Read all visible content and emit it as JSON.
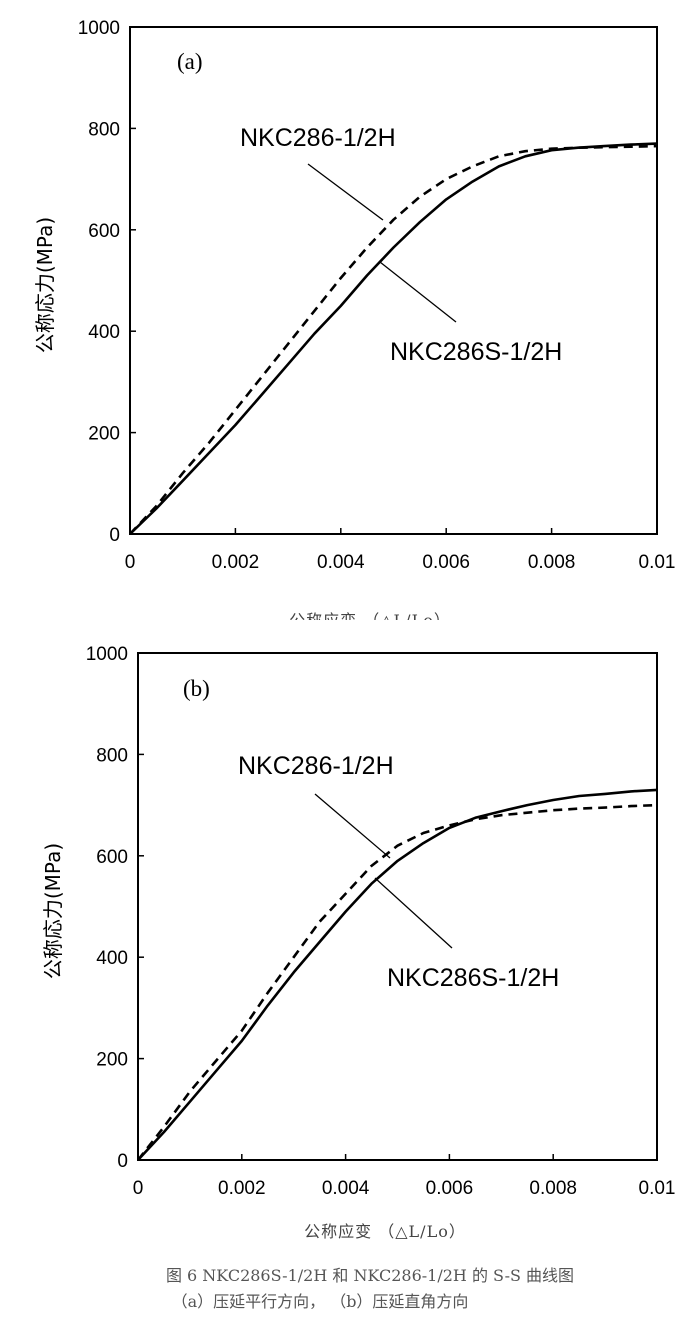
{
  "chart_data": [
    {
      "type": "line",
      "panel_label": "(a)",
      "ylabel": "公称応力(MPa)",
      "xlabel": "公称应变  （△L/Lo）",
      "xlim": [
        0,
        0.01
      ],
      "ylim": [
        0,
        1000
      ],
      "x_ticks": [
        "0",
        "0.002",
        "0.004",
        "0.006",
        "0.008",
        "0.01"
      ],
      "y_ticks": [
        "0",
        "200",
        "400",
        "600",
        "800",
        "1000"
      ],
      "grid": false,
      "series": [
        {
          "name": "NKC286-1/2H",
          "style": "dashed",
          "x": [
            0,
            0.0005,
            0.001,
            0.0015,
            0.002,
            0.0025,
            0.003,
            0.0035,
            0.004,
            0.0045,
            0.005,
            0.0055,
            0.006,
            0.0065,
            0.007,
            0.0075,
            0.008,
            0.0085,
            0.009,
            0.0095,
            0.01
          ],
          "y": [
            0,
            55,
            120,
            180,
            245,
            310,
            375,
            440,
            505,
            565,
            620,
            665,
            700,
            725,
            745,
            755,
            760,
            762,
            763,
            764,
            765
          ]
        },
        {
          "name": "NKC286S-1/2H",
          "style": "solid",
          "x": [
            0,
            0.0005,
            0.001,
            0.0015,
            0.002,
            0.0025,
            0.003,
            0.0035,
            0.004,
            0.0045,
            0.005,
            0.0055,
            0.006,
            0.0065,
            0.007,
            0.0075,
            0.008,
            0.0085,
            0.009,
            0.0095,
            0.01
          ],
          "y": [
            0,
            50,
            105,
            160,
            215,
            275,
            335,
            395,
            450,
            510,
            565,
            615,
            660,
            695,
            725,
            745,
            757,
            762,
            765,
            768,
            770
          ]
        }
      ]
    },
    {
      "type": "line",
      "panel_label": "(b)",
      "ylabel": "公称応力(MPa)",
      "xlabel": "公称应变  （△L/Lo）",
      "xlim": [
        0,
        0.01
      ],
      "ylim": [
        0,
        1000
      ],
      "x_ticks": [
        "0",
        "0.002",
        "0.004",
        "0.006",
        "0.008",
        "0.01"
      ],
      "y_ticks": [
        "0",
        "200",
        "400",
        "600",
        "800",
        "1000"
      ],
      "grid": false,
      "series": [
        {
          "name": "NKC286-1/2H",
          "style": "dashed",
          "x": [
            0,
            0.0005,
            0.001,
            0.0015,
            0.002,
            0.0025,
            0.003,
            0.0035,
            0.004,
            0.0045,
            0.005,
            0.0055,
            0.006,
            0.0065,
            0.007,
            0.0075,
            0.008,
            0.0085,
            0.009,
            0.0095,
            0.01
          ],
          "y": [
            0,
            65,
            135,
            195,
            255,
            330,
            400,
            470,
            525,
            580,
            620,
            645,
            660,
            672,
            680,
            685,
            690,
            693,
            695,
            698,
            700
          ]
        },
        {
          "name": "NKC286S-1/2H",
          "style": "solid",
          "x": [
            0,
            0.0005,
            0.001,
            0.0015,
            0.002,
            0.0025,
            0.003,
            0.0035,
            0.004,
            0.0045,
            0.005,
            0.0055,
            0.006,
            0.0065,
            0.007,
            0.0075,
            0.008,
            0.0085,
            0.009,
            0.0095,
            0.01
          ],
          "y": [
            0,
            55,
            115,
            175,
            235,
            305,
            370,
            430,
            490,
            545,
            590,
            625,
            655,
            675,
            688,
            700,
            710,
            718,
            722,
            727,
            730
          ]
        }
      ]
    }
  ],
  "caption": {
    "line1": "图 6 NKC286S-1/2H 和 NKC286-1/2H 的 S-S 曲线图",
    "line2": "（a）压延平行方向，    （b）压延直角方向"
  }
}
